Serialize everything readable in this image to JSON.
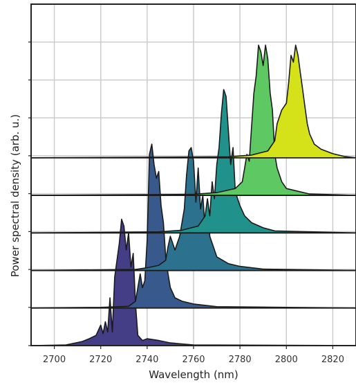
{
  "chart_data": {
    "type": "area",
    "subtype": "ridgeline",
    "title": "",
    "xlabel": "Wavelength (nm)",
    "ylabel": "Power spectral density (arb. u.)",
    "xlim": [
      2690,
      2830
    ],
    "xticks": [
      2700,
      2720,
      2740,
      2760,
      2780,
      2800,
      2820
    ],
    "grid": true,
    "legend": "none",
    "baselines_fraction_of_height": [
      0.0,
      0.11,
      0.22,
      0.33,
      0.44,
      0.55
    ],
    "series": [
      {
        "color": "#433e85",
        "x": [
          2690,
          2705,
          2712,
          2715,
          2718,
          2720,
          2721,
          2722,
          2723,
          2724,
          2725,
          2726,
          2727,
          2728,
          2729,
          2730,
          2731,
          2732,
          2733,
          2734,
          2735,
          2736,
          2738,
          2740,
          2745,
          2750,
          2760,
          2830
        ],
        "y": [
          0,
          0.002,
          0.012,
          0.02,
          0.03,
          0.06,
          0.035,
          0.07,
          0.04,
          0.14,
          0.04,
          0.2,
          0.25,
          0.3,
          0.37,
          0.35,
          0.28,
          0.33,
          0.23,
          0.27,
          0.12,
          0.03,
          0.015,
          0.02,
          0.015,
          0.008,
          0.002,
          0
        ]
      },
      {
        "color": "#38598c",
        "x": [
          2690,
          2720,
          2732,
          2735,
          2736,
          2737,
          2738,
          2739,
          2740,
          2741,
          2742,
          2743,
          2744,
          2745,
          2746,
          2747,
          2748,
          2749,
          2750,
          2752,
          2755,
          2760,
          2770,
          2830
        ],
        "y": [
          0,
          0.002,
          0.005,
          0.02,
          0.06,
          0.1,
          0.06,
          0.08,
          0.2,
          0.45,
          0.48,
          0.42,
          0.38,
          0.4,
          0.3,
          0.25,
          0.15,
          0.1,
          0.06,
          0.03,
          0.02,
          0.012,
          0.004,
          0
        ]
      },
      {
        "color": "#2c728e",
        "x": [
          2690,
          2735,
          2740,
          2745,
          2748,
          2749,
          2750,
          2751,
          2752,
          2754,
          2756,
          2757,
          2758,
          2759,
          2760,
          2761,
          2762,
          2763,
          2764,
          2765,
          2766,
          2767,
          2768,
          2770,
          2775,
          2780,
          2790,
          2830
        ],
        "y": [
          0,
          0.003,
          0.008,
          0.015,
          0.03,
          0.07,
          0.1,
          0.08,
          0.06,
          0.1,
          0.18,
          0.28,
          0.35,
          0.36,
          0.32,
          0.2,
          0.3,
          0.18,
          0.22,
          0.12,
          0.2,
          0.1,
          0.08,
          0.04,
          0.02,
          0.012,
          0.004,
          0
        ]
      },
      {
        "color": "#21918c",
        "x": [
          2690,
          2745,
          2755,
          2762,
          2765,
          2766,
          2767,
          2768,
          2769,
          2770,
          2771,
          2772,
          2773,
          2774,
          2775,
          2776,
          2777,
          2778,
          2779,
          2780,
          2782,
          2785,
          2790,
          2795,
          2830
        ],
        "y": [
          0,
          0.003,
          0.008,
          0.02,
          0.05,
          0.1,
          0.05,
          0.15,
          0.1,
          0.2,
          0.25,
          0.35,
          0.42,
          0.4,
          0.3,
          0.2,
          0.25,
          0.12,
          0.1,
          0.08,
          0.05,
          0.03,
          0.015,
          0.006,
          0
        ]
      },
      {
        "color": "#5ec962",
        "x": [
          2690,
          2760,
          2770,
          2778,
          2781,
          2782,
          2783,
          2784,
          2785,
          2786,
          2787,
          2788,
          2789,
          2790,
          2791,
          2792,
          2793,
          2794,
          2795,
          2796,
          2798,
          2800,
          2805,
          2810,
          2830
        ],
        "y": [
          0,
          0.003,
          0.008,
          0.02,
          0.04,
          0.08,
          0.12,
          0.1,
          0.2,
          0.3,
          0.35,
          0.44,
          0.42,
          0.38,
          0.44,
          0.4,
          0.3,
          0.25,
          0.12,
          0.08,
          0.04,
          0.02,
          0.012,
          0.004,
          0
        ]
      },
      {
        "color": "#d5e21a",
        "x": [
          2690,
          2775,
          2785,
          2792,
          2795,
          2796,
          2797,
          2798,
          2799,
          2800,
          2801,
          2802,
          2803,
          2804,
          2805,
          2806,
          2807,
          2808,
          2809,
          2810,
          2812,
          2815,
          2820,
          2825,
          2830
        ],
        "y": [
          0,
          0.003,
          0.008,
          0.02,
          0.05,
          0.1,
          0.12,
          0.14,
          0.15,
          0.16,
          0.22,
          0.3,
          0.28,
          0.33,
          0.3,
          0.25,
          0.2,
          0.15,
          0.1,
          0.07,
          0.04,
          0.025,
          0.012,
          0.004,
          0
        ]
      }
    ]
  }
}
